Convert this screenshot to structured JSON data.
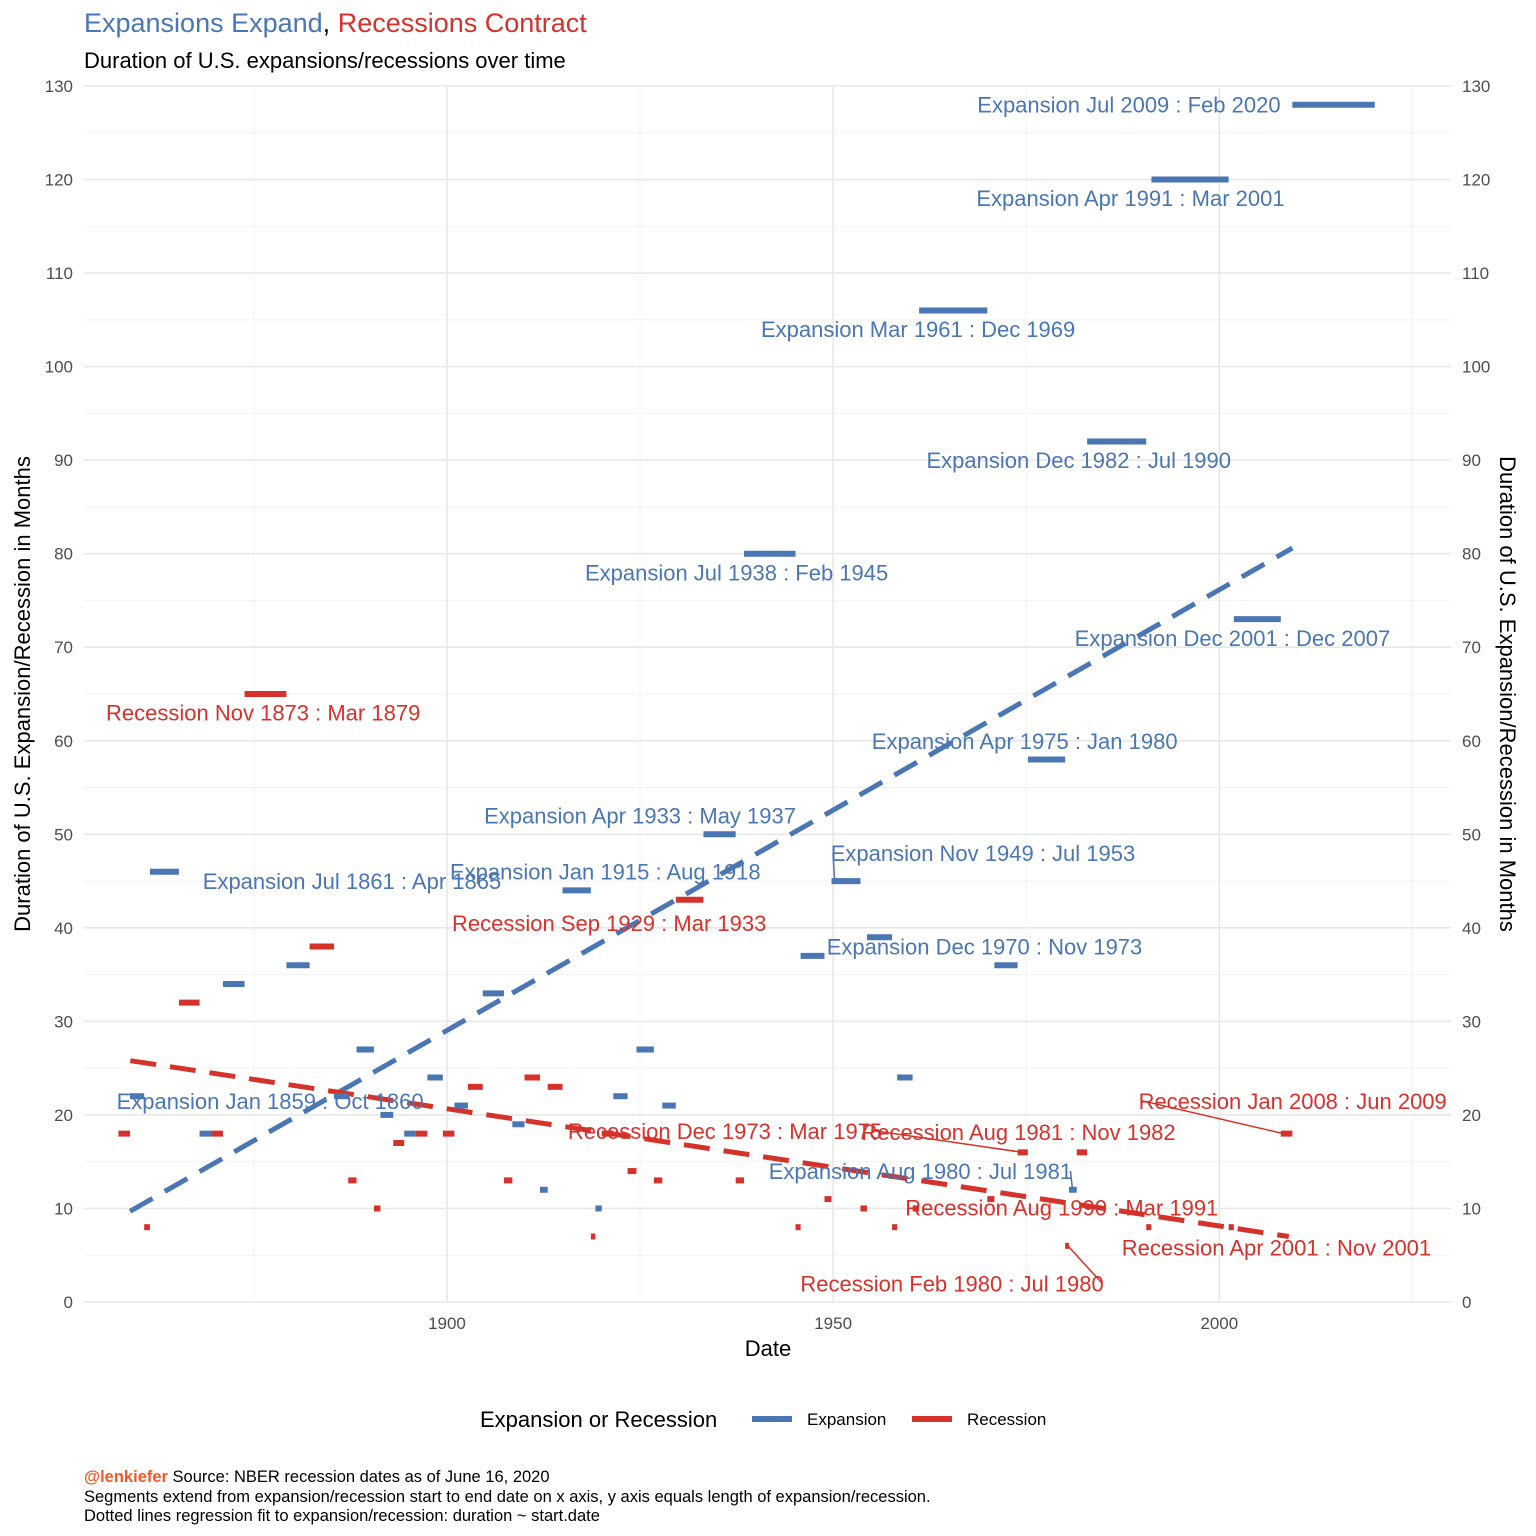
{
  "header": {
    "title_expansion": "Expansions Expand",
    "title_sep": ",",
    "title_recession": "Recessions Contract",
    "subtitle": "Duration of U.S. expansions/recessions over time"
  },
  "caption": {
    "handle": "@lenkiefer",
    "source": " Source: NBER recession dates as of June 16, 2020",
    "line2": "Segments extend from expansion/recession start to end date on x axis, y axis equals length of expansion/recession.",
    "line3": "Dotted lines regression fit to expansion/recession: duration ~ start.date"
  },
  "colors": {
    "expansion": "#4a76b3",
    "recession": "#d5322b",
    "grid": "#e8e8e8",
    "axis_text": "#4d4d4d",
    "handle": "#f15a24"
  },
  "chart_data": {
    "type": "line",
    "xlabel": "Date",
    "ylabel": "Duration of U.S. Expansion/Recession in Months",
    "ylabel_right": "Duration of U.S. Expansion/Recession in Months",
    "xlim": [
      1853,
      2030
    ],
    "ylim": [
      0,
      130
    ],
    "x_ticks": [
      1900,
      1950,
      2000
    ],
    "y_ticks": [
      0,
      10,
      20,
      30,
      40,
      50,
      60,
      70,
      80,
      90,
      100,
      110,
      120,
      130
    ],
    "grid": true,
    "legend": {
      "title": "Expansion or Recession",
      "position": "bottom",
      "items": [
        "Expansion",
        "Recession"
      ]
    },
    "series": [
      {
        "name": "Expansion",
        "segments": [
          {
            "start": 1858.96,
            "end": 1860.79,
            "value": 22
          },
          {
            "start": 1861.54,
            "end": 1865.29,
            "value": 46
          },
          {
            "start": 1867.96,
            "end": 1869.46,
            "value": 18
          },
          {
            "start": 1871.0,
            "end": 1873.79,
            "value": 34
          },
          {
            "start": 1879.21,
            "end": 1882.21,
            "value": 36
          },
          {
            "start": 1885.38,
            "end": 1887.21,
            "value": 22
          },
          {
            "start": 1888.29,
            "end": 1890.54,
            "value": 27
          },
          {
            "start": 1891.38,
            "end": 1893.04,
            "value": 20
          },
          {
            "start": 1894.46,
            "end": 1895.96,
            "value": 18
          },
          {
            "start": 1897.46,
            "end": 1899.46,
            "value": 24
          },
          {
            "start": 1900.96,
            "end": 1902.71,
            "value": 21
          },
          {
            "start": 1904.63,
            "end": 1907.38,
            "value": 33
          },
          {
            "start": 1908.46,
            "end": 1910.04,
            "value": 19
          },
          {
            "start": 1912.04,
            "end": 1913.04,
            "value": 12
          },
          {
            "start": 1914.96,
            "end": 1918.63,
            "value": 44
          },
          {
            "start": 1919.21,
            "end": 1920.04,
            "value": 10
          },
          {
            "start": 1921.54,
            "end": 1923.38,
            "value": 22
          },
          {
            "start": 1924.54,
            "end": 1926.79,
            "value": 27
          },
          {
            "start": 1927.88,
            "end": 1929.63,
            "value": 21
          },
          {
            "start": 1933.21,
            "end": 1937.38,
            "value": 50
          },
          {
            "start": 1938.46,
            "end": 1945.13,
            "value": 80
          },
          {
            "start": 1945.79,
            "end": 1948.88,
            "value": 37
          },
          {
            "start": 1949.79,
            "end": 1953.54,
            "value": 45
          },
          {
            "start": 1954.38,
            "end": 1957.63,
            "value": 39
          },
          {
            "start": 1958.29,
            "end": 1960.29,
            "value": 24
          },
          {
            "start": 1961.13,
            "end": 1969.96,
            "value": 106
          },
          {
            "start": 1970.88,
            "end": 1973.88,
            "value": 36
          },
          {
            "start": 1975.21,
            "end": 1980.04,
            "value": 58
          },
          {
            "start": 1980.54,
            "end": 1981.54,
            "value": 12
          },
          {
            "start": 1982.88,
            "end": 1990.54,
            "value": 92
          },
          {
            "start": 1991.21,
            "end": 2001.21,
            "value": 120
          },
          {
            "start": 2001.88,
            "end": 2007.96,
            "value": 73
          },
          {
            "start": 2009.46,
            "end": 2020.13,
            "value": 128
          }
        ],
        "trend": [
          [
            1858.96,
            9.7
          ],
          [
            2009.46,
            80.6
          ]
        ]
      },
      {
        "name": "Recession",
        "segments": [
          {
            "start": 1857.46,
            "end": 1858.96,
            "value": 18
          },
          {
            "start": 1860.79,
            "end": 1861.54,
            "value": 8
          },
          {
            "start": 1865.29,
            "end": 1867.96,
            "value": 32
          },
          {
            "start": 1869.46,
            "end": 1871.0,
            "value": 18
          },
          {
            "start": 1873.79,
            "end": 1879.21,
            "value": 65
          },
          {
            "start": 1882.21,
            "end": 1885.38,
            "value": 38
          },
          {
            "start": 1887.21,
            "end": 1888.29,
            "value": 13
          },
          {
            "start": 1890.54,
            "end": 1891.38,
            "value": 10
          },
          {
            "start": 1893.04,
            "end": 1894.46,
            "value": 17
          },
          {
            "start": 1895.96,
            "end": 1897.46,
            "value": 18
          },
          {
            "start": 1899.46,
            "end": 1900.96,
            "value": 18
          },
          {
            "start": 1902.71,
            "end": 1904.63,
            "value": 23
          },
          {
            "start": 1907.38,
            "end": 1908.46,
            "value": 13
          },
          {
            "start": 1910.04,
            "end": 1912.04,
            "value": 24
          },
          {
            "start": 1913.04,
            "end": 1914.96,
            "value": 23
          },
          {
            "start": 1918.63,
            "end": 1919.21,
            "value": 7
          },
          {
            "start": 1920.04,
            "end": 1921.54,
            "value": 18
          },
          {
            "start": 1923.38,
            "end": 1924.54,
            "value": 14
          },
          {
            "start": 1926.79,
            "end": 1927.88,
            "value": 13
          },
          {
            "start": 1929.63,
            "end": 1933.21,
            "value": 43
          },
          {
            "start": 1937.38,
            "end": 1938.46,
            "value": 13
          },
          {
            "start": 1945.13,
            "end": 1945.79,
            "value": 8
          },
          {
            "start": 1948.88,
            "end": 1949.79,
            "value": 11
          },
          {
            "start": 1953.54,
            "end": 1954.38,
            "value": 10
          },
          {
            "start": 1957.63,
            "end": 1958.29,
            "value": 8
          },
          {
            "start": 1960.29,
            "end": 1961.13,
            "value": 10
          },
          {
            "start": 1969.96,
            "end": 1970.88,
            "value": 11
          },
          {
            "start": 1973.88,
            "end": 1975.21,
            "value": 16
          },
          {
            "start": 1980.04,
            "end": 1980.54,
            "value": 6
          },
          {
            "start": 1981.54,
            "end": 1982.88,
            "value": 16
          },
          {
            "start": 1990.54,
            "end": 1991.21,
            "value": 8
          },
          {
            "start": 2001.21,
            "end": 2001.88,
            "value": 8
          },
          {
            "start": 2007.96,
            "end": 2009.46,
            "value": 18
          }
        ],
        "trend": [
          [
            1859.0,
            25.8
          ],
          [
            2009.0,
            7.0
          ]
        ]
      }
    ],
    "annotations": [
      {
        "text": "Expansion Jul 2009 : Feb 2020",
        "series": "Expansion",
        "x": 1988.3,
        "y": 128,
        "align": "middle",
        "pointer": false
      },
      {
        "text": "Expansion Apr 1991 : Mar 2001",
        "series": "Expansion",
        "x": 1988.5,
        "y": 118,
        "align": "middle",
        "pointer": false
      },
      {
        "text": "Expansion Mar 1961 : Dec 1969",
        "series": "Expansion",
        "x": 1961.0,
        "y": 104,
        "align": "middle",
        "pointer": false
      },
      {
        "text": "Expansion Dec 1982 : Jul 1990",
        "series": "Expansion",
        "x": 1981.8,
        "y": 90,
        "align": "middle",
        "pointer": false
      },
      {
        "text": "Expansion Jul 1938 : Feb 1945",
        "series": "Expansion",
        "x": 1937.5,
        "y": 78,
        "align": "middle",
        "pointer": false
      },
      {
        "text": "Expansion Dec 2001 : Dec 2007",
        "series": "Expansion",
        "x": 2001.7,
        "y": 71,
        "align": "middle",
        "pointer": false
      },
      {
        "text": "Recession Nov 1873 : Mar 1879",
        "series": "Recession",
        "x": 1876.2,
        "y": 63,
        "align": "middle",
        "pointer": false
      },
      {
        "text": "Expansion Apr 1975 : Jan 1980",
        "series": "Expansion",
        "x": 1974.8,
        "y": 60,
        "align": "middle",
        "pointer": false
      },
      {
        "text": "Expansion Apr 1933 : May 1937",
        "series": "Expansion",
        "x": 1925.0,
        "y": 52,
        "align": "middle",
        "pointer": false
      },
      {
        "text": "Expansion Nov 1949 : Jul 1953",
        "series": "Expansion",
        "x": 1969.4,
        "y": 48,
        "align": "middle",
        "pointer": true,
        "target": [
          1950.2,
          45
        ]
      },
      {
        "text": "Expansion Jan 1915 : Aug 1918",
        "series": "Expansion",
        "x": 1920.5,
        "y": 46,
        "align": "middle",
        "pointer": false
      },
      {
        "text": "Expansion Jul 1861 : Apr 1865",
        "series": "Expansion",
        "x": 1887.7,
        "y": 45,
        "align": "middle",
        "pointer": false
      },
      {
        "text": "Recession Sep 1929 : Mar 1933",
        "series": "Recession",
        "x": 1921.0,
        "y": 40.5,
        "align": "middle",
        "pointer": false
      },
      {
        "text": "Expansion Dec 1970 : Nov 1973",
        "series": "Expansion",
        "x": 1969.6,
        "y": 38,
        "align": "middle",
        "pointer": false
      },
      {
        "text": "Expansion Jan 1859 : Oct 1860",
        "series": "Expansion",
        "x": 1877.1,
        "y": 21.5,
        "align": "middle",
        "pointer": false
      },
      {
        "text": "Recession Jan 2008 : Jun 2009",
        "series": "Recession",
        "x": 2009.5,
        "y": 21.5,
        "align": "middle",
        "pointer": true,
        "target": [
          2008.3,
          18
        ]
      },
      {
        "text": "Recession Dec 1973 : Mar 1975",
        "series": "Recession",
        "x": 1936.0,
        "y": 18.3,
        "align": "middle",
        "pointer": true,
        "target": [
          1974.5,
          16
        ]
      },
      {
        "text": "Recession Aug 1981 : Nov 1982",
        "series": "Recession",
        "x": 1974.0,
        "y": 18.2,
        "align": "middle",
        "pointer": false
      },
      {
        "text": "Expansion Aug 1980 : Jul 1981",
        "series": "Expansion",
        "x": 1961.3,
        "y": 14,
        "align": "middle",
        "pointer": true,
        "target": [
          1981.0,
          12
        ]
      },
      {
        "text": "Recession Aug 1990 : Mar 1991",
        "series": "Recession",
        "x": 1979.6,
        "y": 10.1,
        "align": "middle",
        "pointer": false
      },
      {
        "text": "Recession Apr 2001 : Nov 2001",
        "series": "Recession",
        "x": 2007.4,
        "y": 5.8,
        "align": "middle",
        "pointer": false
      },
      {
        "text": "Recession Feb 1980 : Jul 1980",
        "series": "Recession",
        "x": 1965.4,
        "y": 2.0,
        "align": "middle",
        "pointer": true,
        "target": [
          1980.4,
          6
        ]
      }
    ]
  }
}
